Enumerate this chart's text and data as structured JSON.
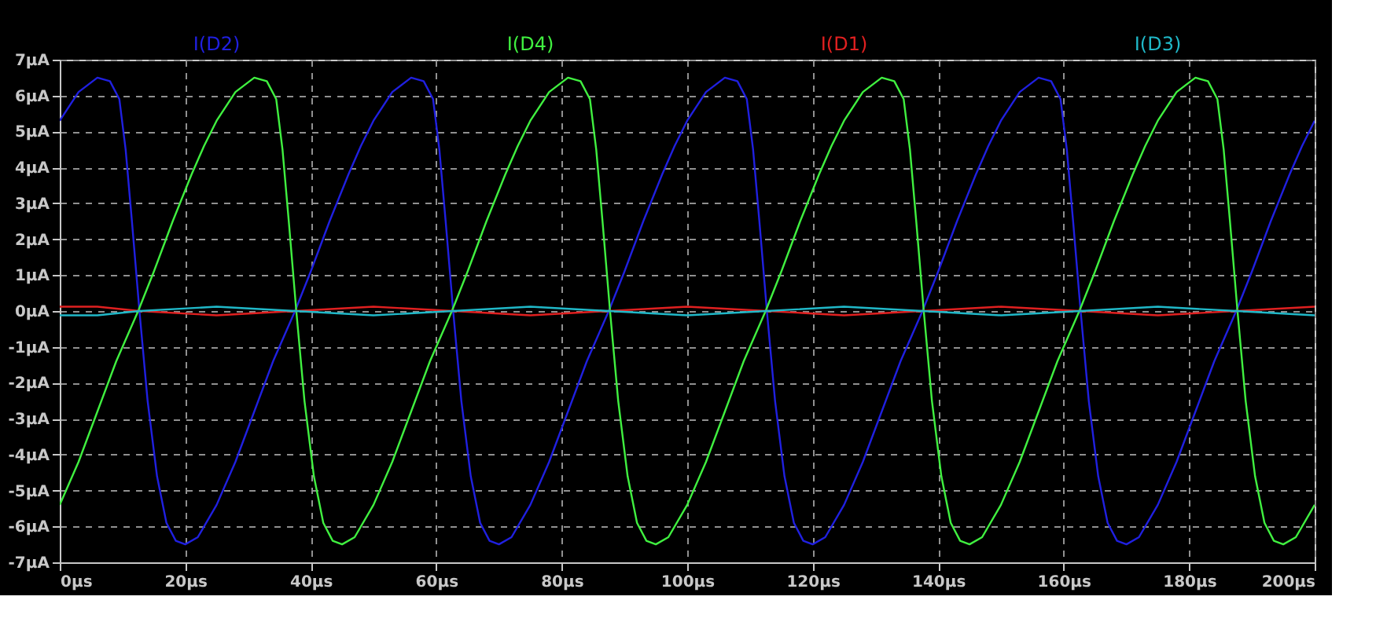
{
  "chart_data": {
    "type": "line",
    "legend": "top",
    "grid": true,
    "line_style": "solid",
    "marker": "none",
    "xlim": [
      0,
      200
    ],
    "ylim": [
      -7,
      7
    ],
    "xticks": [
      {
        "value": 0,
        "label": "0µs"
      },
      {
        "value": 20,
        "label": "20µs"
      },
      {
        "value": 40,
        "label": "40µs"
      },
      {
        "value": 60,
        "label": "60µs"
      },
      {
        "value": 80,
        "label": "80µs"
      },
      {
        "value": 100,
        "label": "100µs"
      },
      {
        "value": 120,
        "label": "120µs"
      },
      {
        "value": 140,
        "label": "140µs"
      },
      {
        "value": 160,
        "label": "160µs"
      },
      {
        "value": 180,
        "label": "180µs"
      },
      {
        "value": 200,
        "label": "200µs"
      }
    ],
    "yticks": [
      {
        "value": -7,
        "label": "-7µA"
      },
      {
        "value": -6,
        "label": "-6µA"
      },
      {
        "value": -5,
        "label": "-5µA"
      },
      {
        "value": -4,
        "label": "-4µA"
      },
      {
        "value": -3,
        "label": "-3µA"
      },
      {
        "value": -2,
        "label": "-2µA"
      },
      {
        "value": -1,
        "label": "-1µA"
      },
      {
        "value": 0,
        "label": "0µA"
      },
      {
        "value": 1,
        "label": "1µA"
      },
      {
        "value": 2,
        "label": "2µA"
      },
      {
        "value": 3,
        "label": "3µA"
      },
      {
        "value": 4,
        "label": "4µA"
      },
      {
        "value": 5,
        "label": "5µA"
      },
      {
        "value": 6,
        "label": "6µA"
      },
      {
        "value": 7,
        "label": "7µA"
      }
    ],
    "series": [
      {
        "name": "I(D2)",
        "color": "#2020e0",
        "x": [
          0,
          3,
          6,
          8,
          9.5,
          10.5,
          11.5,
          12.7,
          14,
          15.5,
          17,
          18.5,
          20,
          22,
          25,
          28,
          31,
          34,
          37.5,
          40,
          43,
          46,
          48,
          50,
          53,
          56,
          58,
          59.5,
          60.5,
          61.5,
          62.7,
          64,
          65.5,
          67,
          68.5,
          70,
          72,
          75,
          78,
          81,
          84,
          87.5,
          90,
          93,
          96,
          98,
          100,
          103,
          106,
          108,
          109.5,
          110.5,
          111.5,
          112.7,
          114,
          115.5,
          117,
          118.5,
          120,
          122,
          125,
          128,
          131,
          134,
          137.5,
          140,
          143,
          146,
          148,
          150,
          153,
          156,
          158,
          159.5,
          160.5,
          161.5,
          162.7,
          164,
          165.5,
          167,
          168.5,
          170,
          172,
          175,
          178,
          181,
          184,
          187.5,
          190,
          193,
          196,
          198,
          200
        ],
        "values": [
          5.3,
          6.1,
          6.5,
          6.4,
          5.9,
          4.5,
          2.5,
          0,
          -2.5,
          -4.6,
          -5.9,
          -6.4,
          -6.5,
          -6.3,
          -5.4,
          -4.2,
          -2.8,
          -1.4,
          0,
          1.1,
          2.5,
          3.8,
          4.6,
          5.3,
          6.1,
          6.5,
          6.4,
          5.9,
          4.5,
          2.5,
          0,
          -2.5,
          -4.6,
          -5.9,
          -6.4,
          -6.5,
          -6.3,
          -5.4,
          -4.2,
          -2.8,
          -1.4,
          0,
          1.1,
          2.5,
          3.8,
          4.6,
          5.3,
          6.1,
          6.5,
          6.4,
          5.9,
          4.5,
          2.5,
          0,
          -2.5,
          -4.6,
          -5.9,
          -6.4,
          -6.5,
          -6.3,
          -5.4,
          -4.2,
          -2.8,
          -1.4,
          0,
          1.1,
          2.5,
          3.8,
          4.6,
          5.3,
          6.1,
          6.5,
          6.4,
          5.9,
          4.5,
          2.5,
          0,
          -2.5,
          -4.6,
          -5.9,
          -6.4,
          -6.5,
          -6.3,
          -5.4,
          -4.2,
          -2.8,
          -1.4,
          0,
          1.1,
          2.5,
          3.8,
          4.6,
          5.3
        ]
      },
      {
        "name": "I(D4)",
        "color": "#40f040",
        "x": [
          0,
          3,
          6,
          9,
          12.5,
          15,
          18,
          21,
          23,
          25,
          28,
          31,
          33,
          34.5,
          35.5,
          36.5,
          37.7,
          39,
          40.5,
          42,
          43.5,
          45,
          47,
          50,
          53,
          56,
          59,
          62.5,
          65,
          68,
          71,
          73,
          75,
          78,
          81,
          83,
          84.5,
          85.5,
          86.5,
          87.7,
          89,
          90.5,
          92,
          93.5,
          95,
          97,
          100,
          103,
          106,
          109,
          112.5,
          115,
          118,
          121,
          123,
          125,
          128,
          131,
          133,
          134.5,
          135.5,
          136.5,
          137.7,
          139,
          140.5,
          142,
          143.5,
          145,
          147,
          150,
          153,
          156,
          159,
          162.5,
          165,
          168,
          171,
          173,
          175,
          178,
          181,
          183,
          184.5,
          185.5,
          186.5,
          187.7,
          189,
          190.5,
          192,
          193.5,
          195,
          197,
          200
        ],
        "values": [
          -5.4,
          -4.2,
          -2.8,
          -1.4,
          0,
          1.1,
          2.5,
          3.8,
          4.6,
          5.3,
          6.1,
          6.5,
          6.4,
          5.9,
          4.5,
          2.5,
          0,
          -2.5,
          -4.6,
          -5.9,
          -6.4,
          -6.5,
          -6.3,
          -5.4,
          -4.2,
          -2.8,
          -1.4,
          0,
          1.1,
          2.5,
          3.8,
          4.6,
          5.3,
          6.1,
          6.5,
          6.4,
          5.9,
          4.5,
          2.5,
          0,
          -2.5,
          -4.6,
          -5.9,
          -6.4,
          -6.5,
          -6.3,
          -5.4,
          -4.2,
          -2.8,
          -1.4,
          0,
          1.1,
          2.5,
          3.8,
          4.6,
          5.3,
          6.1,
          6.5,
          6.4,
          5.9,
          4.5,
          2.5,
          0,
          -2.5,
          -4.6,
          -5.9,
          -6.4,
          -6.5,
          -6.3,
          -5.4,
          -4.2,
          -2.8,
          -1.4,
          0,
          1.1,
          2.5,
          3.8,
          4.6,
          5.3,
          6.1,
          6.5,
          6.4,
          5.9,
          4.5,
          2.5,
          0,
          -2.5,
          -4.6,
          -5.9,
          -6.4,
          -6.5,
          -6.3,
          -5.4
        ]
      },
      {
        "name": "I(D1)",
        "color": "#e02020",
        "x": [
          0,
          6,
          12.7,
          25,
          37.5,
          50,
          62.7,
          75,
          87.5,
          100,
          112.7,
          125,
          137.5,
          150,
          162.7,
          175,
          187.5,
          200
        ],
        "values": [
          0.12,
          0.12,
          0,
          -0.12,
          0,
          0.12,
          0,
          -0.12,
          0,
          0.12,
          0,
          -0.12,
          0,
          0.12,
          0,
          -0.12,
          0,
          0.12
        ]
      },
      {
        "name": "I(D3)",
        "color": "#20b8c8",
        "x": [
          0,
          6,
          12.7,
          25,
          37.5,
          50,
          62.7,
          75,
          87.5,
          100,
          112.7,
          125,
          137.5,
          150,
          162.7,
          175,
          187.5,
          200
        ],
        "values": [
          -0.12,
          -0.12,
          0,
          0.12,
          0,
          -0.12,
          0,
          0.12,
          0,
          -0.12,
          0,
          0.12,
          0,
          -0.12,
          0,
          0.12,
          0,
          -0.12
        ]
      }
    ]
  }
}
